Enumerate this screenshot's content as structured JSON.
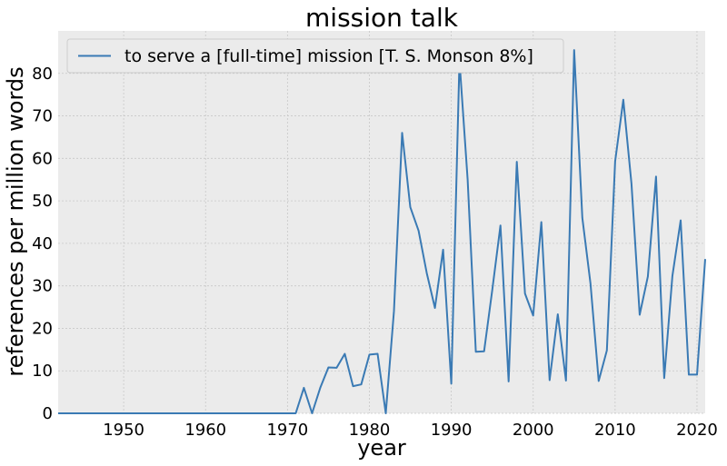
{
  "chart_data": {
    "type": "line",
    "title": "mission talk",
    "xlabel": "year",
    "ylabel": "references per million words",
    "xlim": [
      1942,
      2021
    ],
    "ylim": [
      0,
      90
    ],
    "x_ticks": [
      1950,
      1960,
      1970,
      1980,
      1990,
      2000,
      2010,
      2020
    ],
    "y_ticks": [
      0,
      10,
      20,
      30,
      40,
      50,
      60,
      70,
      80
    ],
    "grid": true,
    "legend_position": "top-left",
    "background_color": "#ebebeb",
    "line_color": "#3a7ab4",
    "series": [
      {
        "name": "to serve a [full-time] mission [T. S. Monson 8%]",
        "x": [
          1942,
          1943,
          1944,
          1945,
          1946,
          1947,
          1948,
          1949,
          1950,
          1951,
          1952,
          1953,
          1954,
          1955,
          1956,
          1957,
          1958,
          1959,
          1960,
          1961,
          1962,
          1963,
          1964,
          1965,
          1966,
          1967,
          1968,
          1969,
          1970,
          1971,
          1972,
          1973,
          1974,
          1975,
          1976,
          1977,
          1978,
          1979,
          1980,
          1981,
          1982,
          1983,
          1984,
          1985,
          1986,
          1987,
          1988,
          1989,
          1990,
          1991,
          1992,
          1993,
          1994,
          1995,
          1996,
          1997,
          1998,
          1999,
          2000,
          2001,
          2002,
          2003,
          2004,
          2005,
          2006,
          2007,
          2008,
          2009,
          2010,
          2011,
          2012,
          2013,
          2014,
          2015,
          2016,
          2017,
          2018,
          2019,
          2020,
          2021
        ],
        "values": [
          0,
          0,
          0,
          0,
          0,
          0,
          0,
          0,
          0,
          0,
          0,
          0,
          0,
          0,
          0,
          0,
          0,
          0,
          0,
          0,
          0,
          0,
          0,
          0,
          0,
          0,
          0,
          0,
          0,
          0,
          6,
          0,
          6,
          10.8,
          10.7,
          14,
          6.4,
          6.8,
          13.8,
          14,
          0,
          24,
          66,
          48.5,
          43,
          33,
          24.8,
          38.5,
          7,
          83,
          55,
          14.5,
          14.6,
          29,
          44.2,
          7.5,
          59.2,
          28.2,
          23,
          45,
          7.8,
          23.3,
          7.7,
          85.5,
          46,
          30.5,
          7.6,
          14.8,
          59.3,
          73.8,
          54,
          23.2,
          32.2,
          55.7,
          8.3,
          32.3,
          45.4,
          9.1,
          9.1,
          36.3
        ]
      }
    ]
  }
}
